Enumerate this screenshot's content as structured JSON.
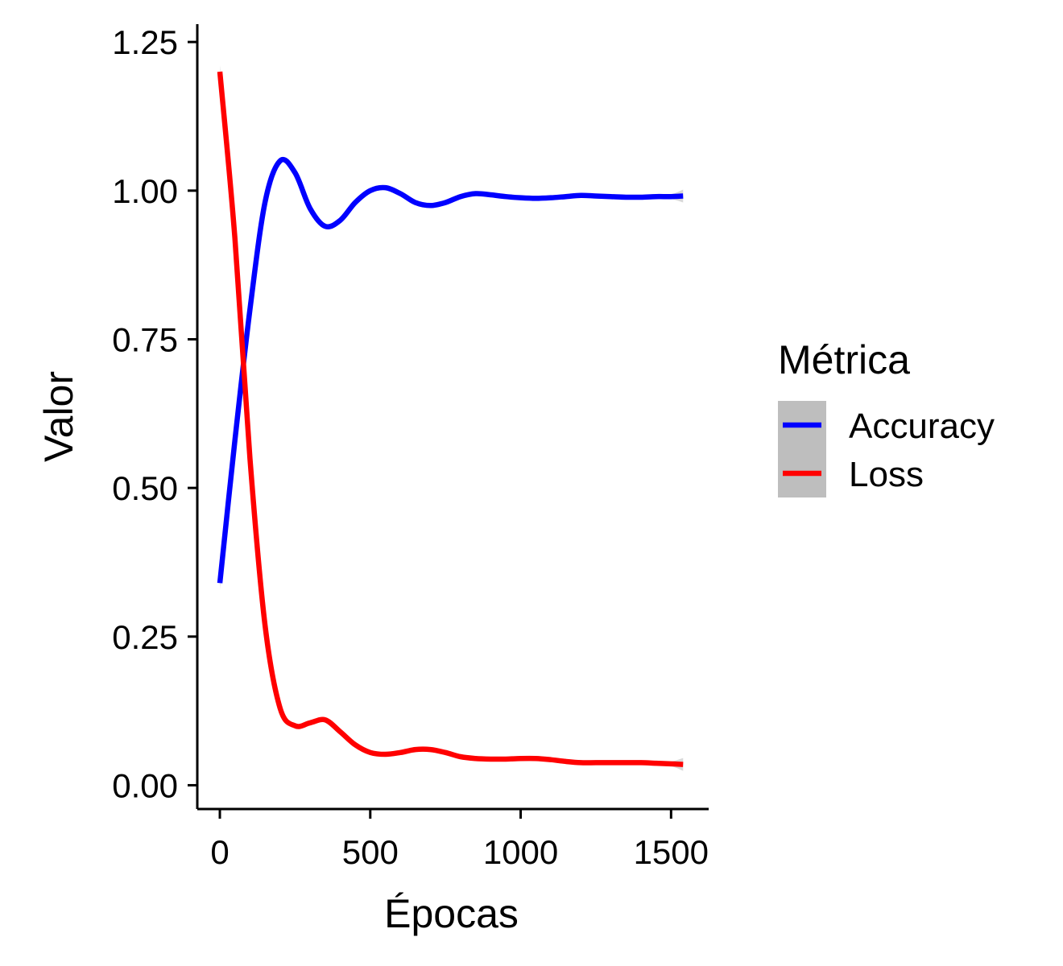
{
  "chart_data": {
    "type": "line",
    "title": "",
    "xlabel": "Épocas",
    "ylabel": "Valor",
    "xlim": [
      -75,
      1625
    ],
    "ylim": [
      -0.04,
      1.28
    ],
    "x_ticks": [
      0,
      500,
      1000,
      1500
    ],
    "y_ticks": [
      0.0,
      0.25,
      0.5,
      0.75,
      1.0,
      1.25
    ],
    "x_tick_labels": [
      "0",
      "500",
      "1000",
      "1500"
    ],
    "y_tick_labels": [
      "0.00",
      "0.25",
      "0.50",
      "0.75",
      "1.00",
      "1.25"
    ],
    "grid": false,
    "confidence_band": true,
    "legend": {
      "title": "Métrica",
      "position": "right"
    },
    "series": [
      {
        "name": "Accuracy",
        "color": "#0000ff",
        "x": [
          0,
          50,
          100,
          150,
          200,
          250,
          300,
          350,
          400,
          450,
          500,
          550,
          600,
          650,
          700,
          750,
          800,
          850,
          900,
          950,
          1000,
          1050,
          1100,
          1150,
          1200,
          1250,
          1300,
          1350,
          1400,
          1450,
          1500,
          1540
        ],
        "values": [
          0.34,
          0.58,
          0.8,
          0.98,
          1.05,
          1.03,
          0.97,
          0.94,
          0.95,
          0.98,
          1.0,
          1.005,
          0.995,
          0.98,
          0.975,
          0.98,
          0.99,
          0.995,
          0.993,
          0.99,
          0.988,
          0.987,
          0.988,
          0.99,
          0.992,
          0.991,
          0.99,
          0.989,
          0.989,
          0.99,
          0.99,
          0.991
        ]
      },
      {
        "name": "Loss",
        "color": "#ff0000",
        "x": [
          0,
          50,
          100,
          150,
          200,
          250,
          300,
          350,
          400,
          450,
          500,
          550,
          600,
          650,
          700,
          750,
          800,
          850,
          900,
          950,
          1000,
          1050,
          1100,
          1150,
          1200,
          1250,
          1300,
          1350,
          1400,
          1450,
          1500,
          1540
        ],
        "values": [
          1.2,
          0.92,
          0.55,
          0.27,
          0.13,
          0.1,
          0.105,
          0.11,
          0.09,
          0.068,
          0.055,
          0.052,
          0.055,
          0.06,
          0.06,
          0.055,
          0.048,
          0.045,
          0.044,
          0.044,
          0.045,
          0.045,
          0.043,
          0.04,
          0.038,
          0.038,
          0.038,
          0.038,
          0.038,
          0.037,
          0.036,
          0.035
        ]
      }
    ]
  }
}
